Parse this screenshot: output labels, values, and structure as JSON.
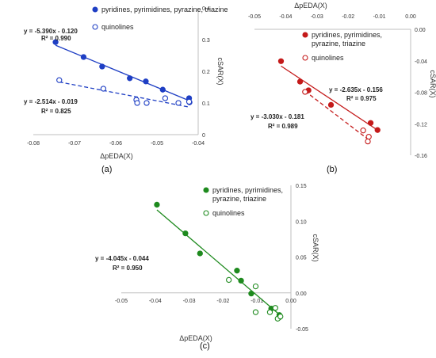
{
  "chart_data": [
    {
      "panel_label": "(a)",
      "type": "scatter",
      "xlabel": "ΔpEDA(X)",
      "ylabel": "cSAR(X)",
      "xlim": [
        -0.08,
        -0.04
      ],
      "ylim": [
        0,
        0.4
      ],
      "x_ticks": [
        "-0.08",
        "-0.07",
        "-0.06",
        "-0.05",
        "-0.04"
      ],
      "y_ticks": [
        "0",
        "0.1",
        "0.2",
        "0.3",
        "0.4"
      ],
      "color": "#1f3fc4",
      "legend": [
        "pyridines, pyrimidines, pyrazine, triazine",
        "quinolines"
      ],
      "series": [
        {
          "name": "pyridines, pyrimidines, pyrazine, triazine",
          "marker": "filled",
          "points": [
            [
              -0.0746,
              0.292
            ],
            [
              -0.0678,
              0.245
            ],
            [
              -0.0633,
              0.215
            ],
            [
              -0.0566,
              0.178
            ],
            [
              -0.0527,
              0.168
            ],
            [
              -0.0486,
              0.142
            ],
            [
              -0.0422,
              0.115
            ],
            [
              -0.0421,
              0.102
            ]
          ],
          "fit": {
            "slope": -5.39,
            "intercept": -0.12,
            "line": "solid"
          },
          "equation": "y = -5.390x - 0.120",
          "r2": "R² = 0.990"
        },
        {
          "name": "quinolines",
          "marker": "open",
          "points": [
            [
              -0.0737,
              0.172
            ],
            [
              -0.063,
              0.145
            ],
            [
              -0.055,
              0.11
            ],
            [
              -0.0548,
              0.1
            ],
            [
              -0.0525,
              0.1
            ],
            [
              -0.048,
              0.115
            ],
            [
              -0.0448,
              0.1
            ],
            [
              -0.0422,
              0.104
            ]
          ],
          "fit": {
            "slope": -2.514,
            "intercept": -0.019,
            "line": "dashed"
          },
          "equation": "y = -2.514x - 0.019",
          "r2": "R² = 0.825"
        }
      ]
    },
    {
      "panel_label": "(b)",
      "type": "scatter",
      "xlabel": "ΔpEDA(X)",
      "ylabel": "cSAR(X)",
      "xlim": [
        -0.05,
        0
      ],
      "ylim": [
        -0.16,
        0
      ],
      "x_ticks": [
        "-0.05",
        "-0.04",
        "-0.03",
        "-0.02",
        "-0.01",
        "0.00"
      ],
      "y_ticks": [
        "0.00",
        "-0.04",
        "-0.08",
        "-0.12",
        "-0.16"
      ],
      "color": "#c41a1a",
      "legend": [
        "pyridines, pyrimidines, pyrazine, triazine",
        "quinolines"
      ],
      "series": [
        {
          "name": "pyridines, pyrimidines, pyrazine, triazine",
          "marker": "filled",
          "points": [
            [
              -0.0415,
              -0.0405
            ],
            [
              -0.0354,
              -0.0665
            ],
            [
              -0.0327,
              -0.0775
            ],
            [
              -0.0255,
              -0.096
            ],
            [
              -0.0128,
              -0.119
            ],
            [
              -0.0106,
              -0.128
            ]
          ],
          "fit": {
            "slope": -2.635,
            "intercept": -0.156,
            "line": "solid"
          },
          "equation": "y = -2.635x - 0.156",
          "r2": "R² = 0.975"
        },
        {
          "name": "quinolines",
          "marker": "open",
          "points": [
            [
              -0.0338,
              -0.0795
            ],
            [
              -0.0152,
              -0.1285
            ],
            [
              -0.0134,
              -0.1365
            ],
            [
              -0.0137,
              -0.1425
            ]
          ],
          "fit": {
            "slope": -3.03,
            "intercept": -0.181,
            "line": "dashed"
          },
          "equation": "y = -3.030x - 0.181",
          "r2": "R² = 0.989"
        }
      ]
    },
    {
      "panel_label": "(c)",
      "type": "scatter",
      "xlabel": "ΔpEDA(X)",
      "ylabel": "cSAR(X)",
      "xlim": [
        -0.05,
        0
      ],
      "ylim": [
        -0.05,
        0.15
      ],
      "x_ticks": [
        "-0.05",
        "-0.04",
        "-0.03",
        "-0.02",
        "-0.01",
        "0.00"
      ],
      "y_ticks": [
        "-0.05",
        "0.00",
        "0.05",
        "0.10",
        "0.15"
      ],
      "color": "#1e8a1e",
      "legend": [
        "pyridines, pyrimidines, pyrazine, triazine",
        "quinolines"
      ],
      "series": [
        {
          "name": "pyridines, pyrimidines, pyrazine, triazine",
          "marker": "filled",
          "points": [
            [
              -0.0395,
              0.123
            ],
            [
              -0.0311,
              0.083
            ],
            [
              -0.0268,
              0.055
            ],
            [
              -0.0159,
              0.031
            ],
            [
              -0.0147,
              0.017
            ],
            [
              -0.0117,
              -0.001
            ],
            [
              -0.0058,
              -0.022
            ],
            [
              -0.0034,
              -0.031
            ],
            [
              -0.0034,
              -0.034
            ]
          ],
          "fit": {
            "slope": -4.045,
            "intercept": -0.044,
            "line": "solid"
          },
          "equation": "y = -4.045x - 0.044",
          "r2": "R² = 0.950"
        },
        {
          "name": "quinolines",
          "marker": "open",
          "points": [
            [
              -0.0183,
              0.018
            ],
            [
              -0.0104,
              0.009
            ],
            [
              -0.0104,
              -0.027
            ],
            [
              -0.0062,
              -0.027
            ],
            [
              -0.0046,
              -0.021
            ],
            [
              -0.0039,
              -0.036
            ],
            [
              -0.0031,
              -0.033
            ]
          ],
          "fit": null
        }
      ]
    }
  ]
}
